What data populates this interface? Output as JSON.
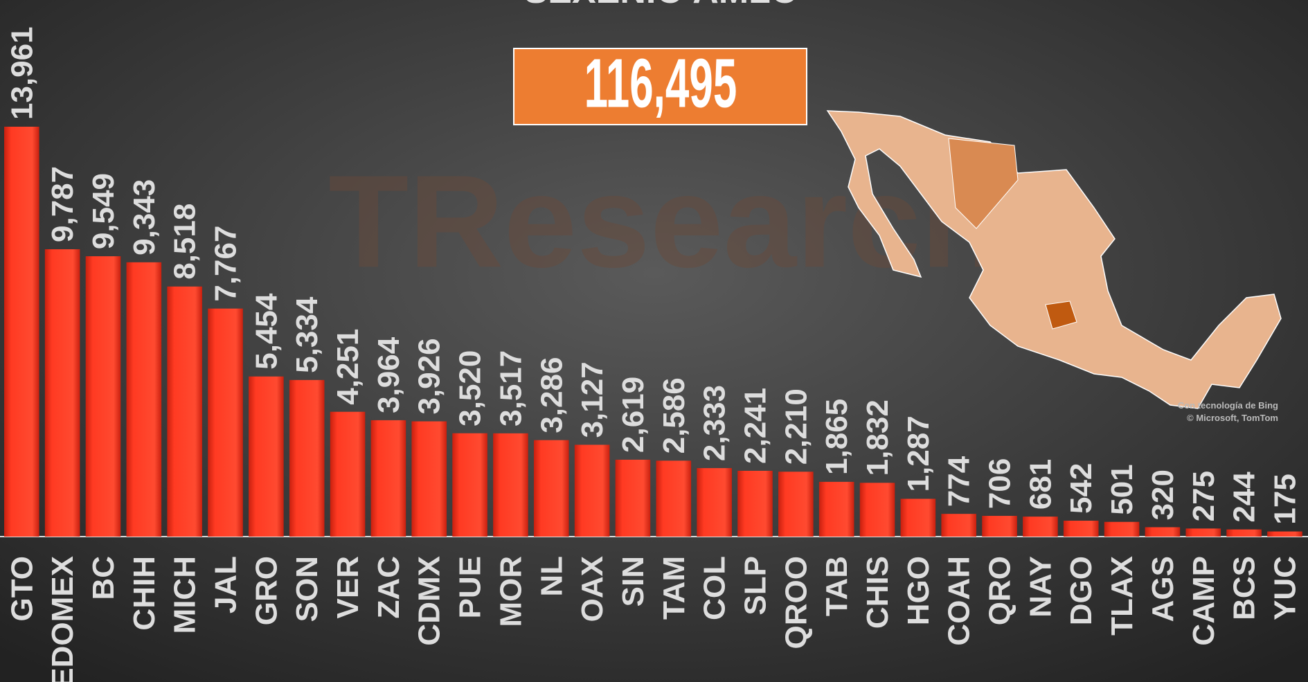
{
  "chart_data": {
    "type": "bar",
    "title": "SEXENIO AMLO",
    "total": "116,495",
    "watermark": "TResearch",
    "attribution": [
      "Con tecnología de Bing",
      "© Microsoft, TomTom"
    ],
    "categories": [
      "GTO",
      "EDOMEX",
      "BC",
      "CHIH",
      "MICH",
      "JAL",
      "GRO",
      "SON",
      "VER",
      "ZAC",
      "CDMX",
      "PUE",
      "MOR",
      "NL",
      "OAX",
      "SIN",
      "TAM",
      "COL",
      "SLP",
      "QROO",
      "TAB",
      "CHIS",
      "HGO",
      "COAH",
      "QRO",
      "NAY",
      "DGO",
      "TLAX",
      "AGS",
      "CAMP",
      "BCS",
      "YUC"
    ],
    "values": [
      13961,
      9787,
      9549,
      9343,
      8518,
      7767,
      5454,
      5334,
      4251,
      3964,
      3926,
      3520,
      3517,
      3286,
      3127,
      2619,
      2586,
      2333,
      2241,
      2210,
      1865,
      1832,
      1287,
      774,
      706,
      681,
      542,
      501,
      320,
      275,
      244,
      175
    ],
    "value_labels": [
      "13,961",
      "9,787",
      "9,549",
      "9,343",
      "8,518",
      "7,767",
      "5,454",
      "5,334",
      "4,251",
      "3,964",
      "3,926",
      "3,520",
      "3,517",
      "3,286",
      "3,127",
      "2,619",
      "2,586",
      "2,333",
      "2,241",
      "2,210",
      "1,865",
      "1,832",
      "1,287",
      "774",
      "706",
      "681",
      "542",
      "501",
      "320",
      "275",
      "244",
      "175"
    ],
    "color": "#ff3a22"
  }
}
